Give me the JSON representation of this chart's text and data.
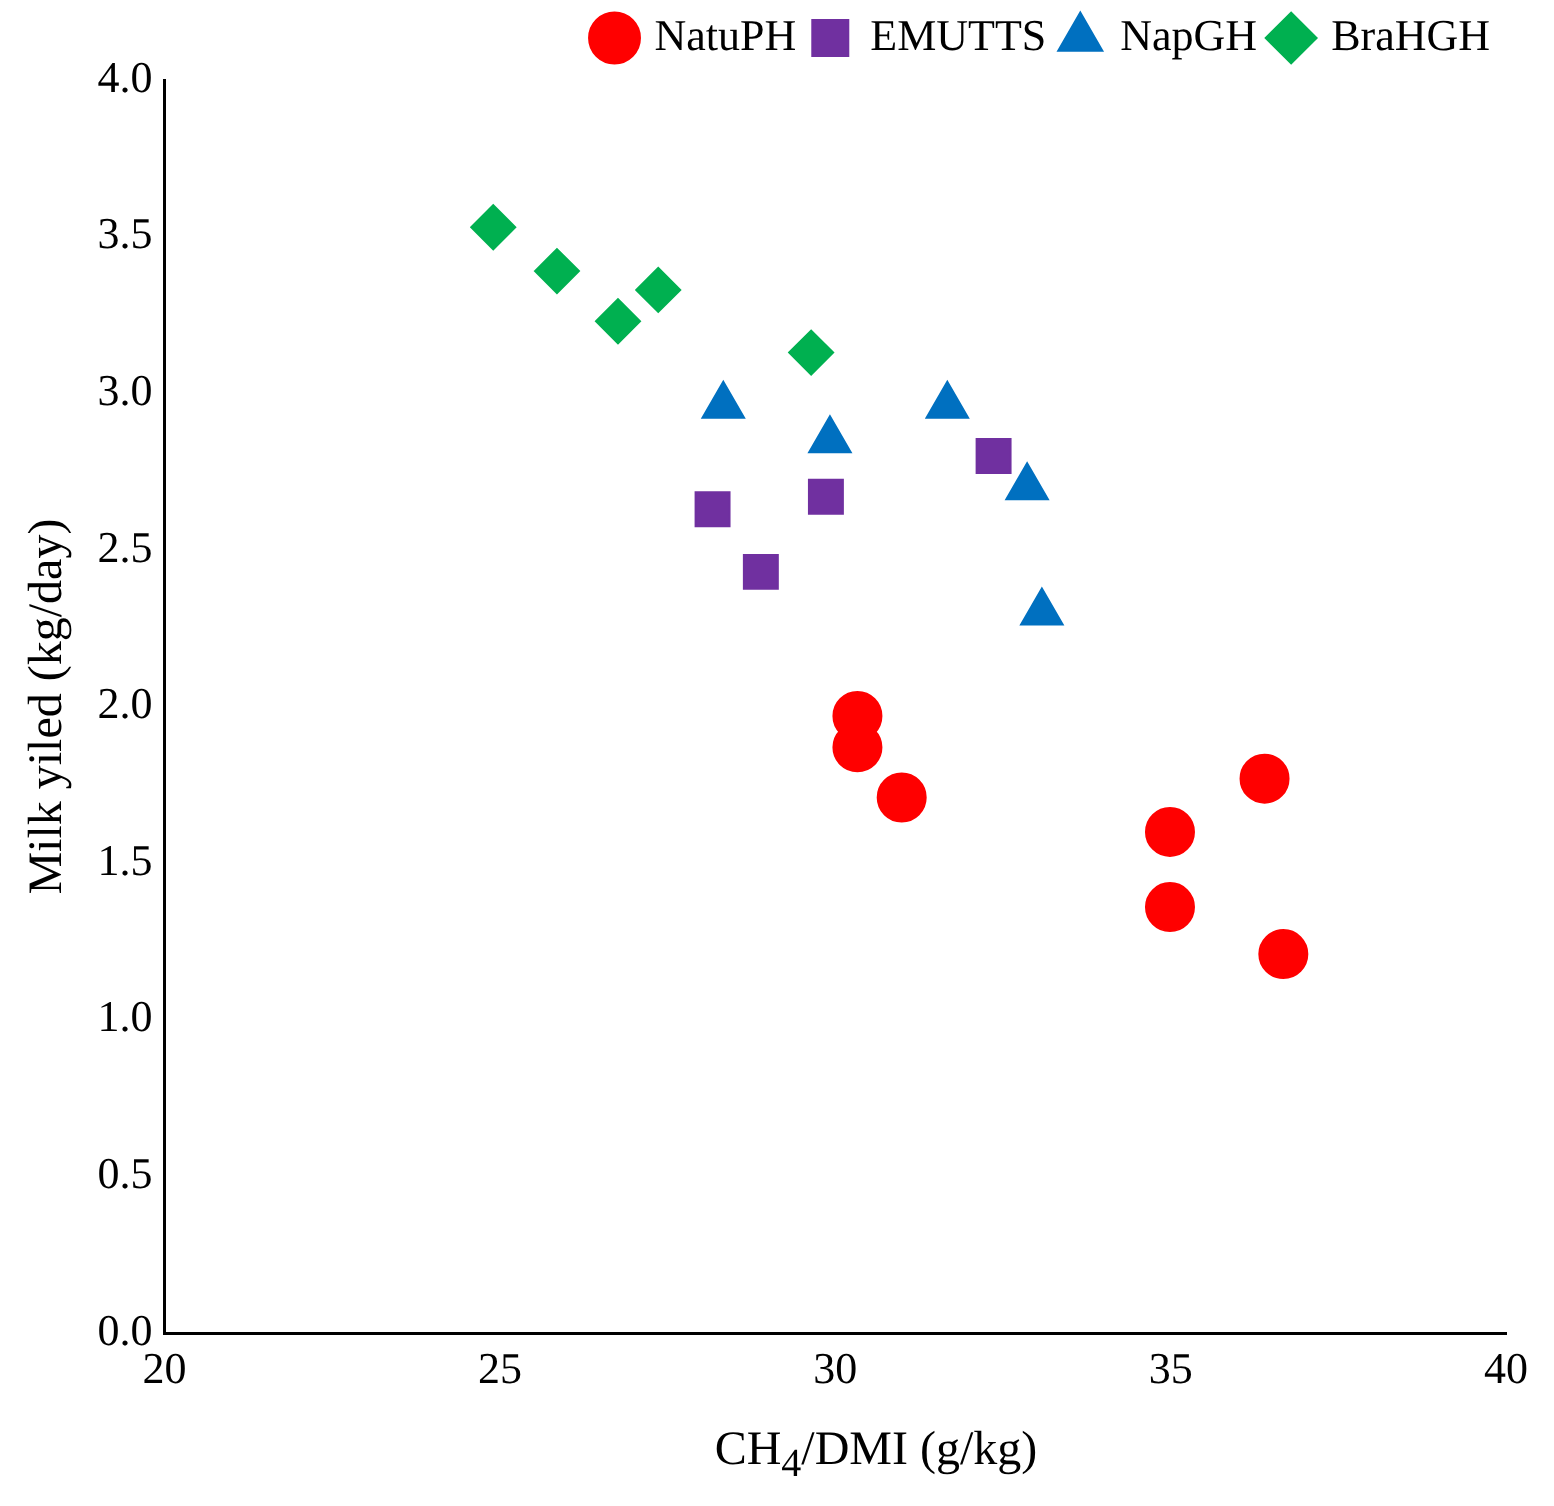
{
  "chart_data": {
    "type": "scatter",
    "xlabel": "CH$_{4}$/DMI (g/kg)",
    "ylabel": "Milk yiled (kg/day)",
    "series": [
      {
        "name": "NatuPH",
        "color": "#ff0000",
        "marker": "circle",
        "x": [
          30.33,
          30.33,
          30.99,
          34.99,
          34.99,
          36.4,
          36.68
        ],
        "values": [
          1.97,
          1.87,
          1.71,
          1.6,
          1.36,
          1.77,
          1.21
        ]
      },
      {
        "name": "EMUTTS",
        "color": "#7030a0",
        "marker": "square",
        "x": [
          28.17,
          28.89,
          29.86,
          32.36
        ],
        "values": [
          2.63,
          2.43,
          2.67,
          2.8
        ]
      },
      {
        "name": "NapGH",
        "color": "#0070c0",
        "marker": "triangle",
        "x": [
          28.33,
          29.92,
          31.67,
          32.86,
          33.08
        ],
        "values": [
          2.96,
          2.85,
          2.96,
          2.7,
          2.3
        ]
      },
      {
        "name": "BraHGH",
        "color": "#00b050",
        "marker": "diamond",
        "x": [
          24.9,
          25.85,
          26.76,
          27.36,
          29.64
        ],
        "values": [
          3.53,
          3.39,
          3.23,
          3.33,
          3.13
        ]
      }
    ],
    "xlim": [
      20,
      40
    ],
    "xticks": [
      20,
      25,
      30,
      35,
      40
    ],
    "ylim": [
      0,
      4
    ],
    "yticks": [
      {
        "value": 0,
        "label": "0.0"
      },
      0.5,
      {
        "value": 1,
        "label": "1.0"
      },
      1.5,
      {
        "value": 2,
        "label": "2.0"
      },
      2.5,
      {
        "value": 3,
        "label": "3.0"
      },
      3.5,
      {
        "value": 4,
        "label": "4.0"
      }
    ],
    "grid": false,
    "legend": "top right"
  }
}
